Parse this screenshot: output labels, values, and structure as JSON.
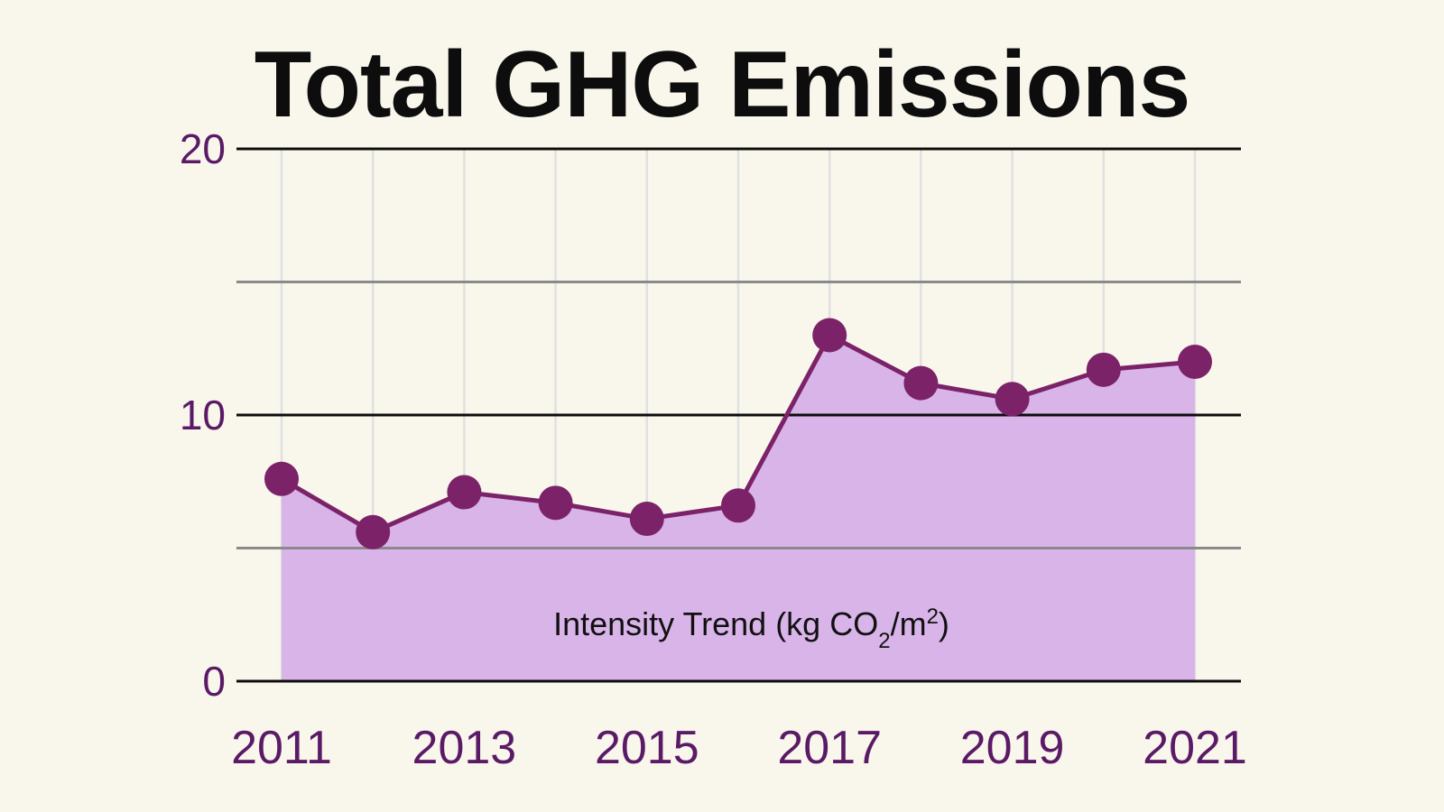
{
  "chart_data": {
    "type": "area",
    "title": "Total GHG Emissions",
    "x": [
      2011,
      2012,
      2013,
      2014,
      2015,
      2016,
      2017,
      2018,
      2019,
      2020,
      2021
    ],
    "series": [
      {
        "name": "Intensity Trend (kg CO2/m2)",
        "name_parts": {
          "pre": "Intensity Trend (kg CO",
          "sub": "2",
          "mid": "/m",
          "sup": "2",
          "post": ")"
        },
        "values": [
          7.6,
          5.6,
          7.1,
          6.7,
          6.1,
          6.6,
          13.0,
          11.2,
          10.6,
          11.7,
          12.0
        ]
      }
    ],
    "x_tick_labels": [
      "2011",
      "2013",
      "2015",
      "2017",
      "2019",
      "2021"
    ],
    "y_tick_labels": [
      "0",
      "10",
      "20"
    ],
    "xlim": [
      2011,
      2021
    ],
    "ylim": [
      0,
      20
    ],
    "y_major_gridlines": [
      0,
      10,
      20
    ],
    "y_minor_gridlines": [
      5,
      15
    ],
    "grid": true,
    "colors": {
      "line": "#7b2268",
      "marker": "#7b2268",
      "area": "#d9b4e9",
      "tick_text": "#5b1a66",
      "major_grid": "#0d0d0d",
      "minor_grid": "#8a8a8a",
      "vertical_grid": "#e0e0e0",
      "background": "#f9f7ec"
    }
  }
}
